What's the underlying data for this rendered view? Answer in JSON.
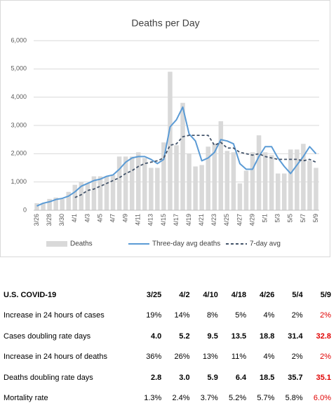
{
  "chart_data": {
    "type": "combo",
    "title": "Deaths per Day",
    "categories": [
      "3/26",
      null,
      "3/28",
      null,
      "3/30",
      null,
      "4/1",
      null,
      "4/3",
      null,
      "4/5",
      null,
      "4/7",
      null,
      "4/9",
      null,
      "4/11",
      null,
      "4/13",
      null,
      "4/15",
      null,
      "4/17",
      null,
      "4/19",
      null,
      "4/21",
      null,
      "4/23",
      null,
      "4/25",
      null,
      "4/27",
      null,
      "4/29",
      null,
      "5/1",
      null,
      "5/3",
      null,
      "5/5",
      null,
      "5/7",
      null,
      "5/9"
    ],
    "series": [
      {
        "name": "Deaths",
        "type": "bar",
        "color": "#d9d9d9",
        "values": [
          250,
          250,
          400,
          450,
          400,
          650,
          900,
          1000,
          950,
          1200,
          1200,
          1200,
          1250,
          1900,
          1900,
          1900,
          2050,
          1850,
          1500,
          1500,
          2400,
          4900,
          2300,
          3800,
          2000,
          1550,
          1600,
          2250,
          2350,
          3150,
          2100,
          2050,
          950,
          1400,
          2050,
          2650,
          2050,
          1950,
          1300,
          1300,
          2150,
          2150,
          2350,
          1750,
          1500
        ]
      },
      {
        "name": "Three-day avg deaths",
        "type": "line",
        "color": "#5b9bd5",
        "dashed": false,
        "values": [
          150,
          250,
          300,
          380,
          420,
          500,
          650,
          850,
          950,
          1050,
          1100,
          1200,
          1250,
          1450,
          1700,
          1850,
          1900,
          1900,
          1800,
          1650,
          1800,
          2950,
          3200,
          3650,
          2700,
          2450,
          1750,
          1850,
          2050,
          2500,
          2450,
          2350,
          1650,
          1450,
          1450,
          1900,
          2250,
          2250,
          1850,
          1550,
          1300,
          1600,
          1900,
          2250,
          2000
        ]
      },
      {
        "name": "7-day avg",
        "type": "line",
        "color": "#44546a",
        "dashed": true,
        "values": [
          null,
          null,
          null,
          null,
          null,
          null,
          450,
          550,
          700,
          750,
          850,
          950,
          1050,
          1150,
          1300,
          1400,
          1550,
          1650,
          1700,
          1750,
          1850,
          2300,
          2350,
          2600,
          2650,
          2650,
          2650,
          2650,
          2300,
          2400,
          2200,
          2200,
          2050,
          2000,
          1950,
          2000,
          1900,
          1850,
          1800,
          1800,
          1800,
          1800,
          1750,
          1800,
          1700
        ]
      }
    ],
    "ylim": [
      0,
      6000
    ],
    "yticks": [
      0,
      {
        "value": 1000,
        "label": "1,000"
      },
      {
        "value": 2000,
        "label": "2,000"
      },
      {
        "value": 3000,
        "label": "3,000"
      },
      {
        "value": 4000,
        "label": "4,000"
      },
      {
        "value": 5000,
        "label": "5,000"
      },
      {
        "value": 6000,
        "label": "6,000"
      }
    ],
    "grid": true,
    "legend": "bottom"
  },
  "table": {
    "header": [
      "U.S. COVID-19",
      "3/25",
      "4/2",
      "4/10",
      "4/18",
      "4/26",
      "5/4",
      "5/9"
    ],
    "highlight_last_column_color": "#e00000",
    "rows": [
      [
        "Increase in 24 hours of cases",
        "19%",
        "14%",
        "8%",
        "5%",
        "4%",
        "2%",
        "2%"
      ],
      [
        "Cases doubling rate days",
        "4.0",
        "5.2",
        "9.5",
        "13.5",
        "18.8",
        "31.4",
        "32.8"
      ],
      [
        "Increase in 24 hours of deaths",
        "36%",
        "26%",
        "13%",
        "11%",
        "4%",
        "2%",
        "2%"
      ],
      [
        "Deaths doubling rate days",
        "2.8",
        "3.0",
        "5.9",
        "6.4",
        "18.5",
        "35.7",
        "35.1"
      ],
      [
        "Mortality rate",
        "1.3%",
        "2.4%",
        "3.7%",
        "5.2%",
        "5.7%",
        "5.8%",
        "6.0%"
      ]
    ]
  }
}
